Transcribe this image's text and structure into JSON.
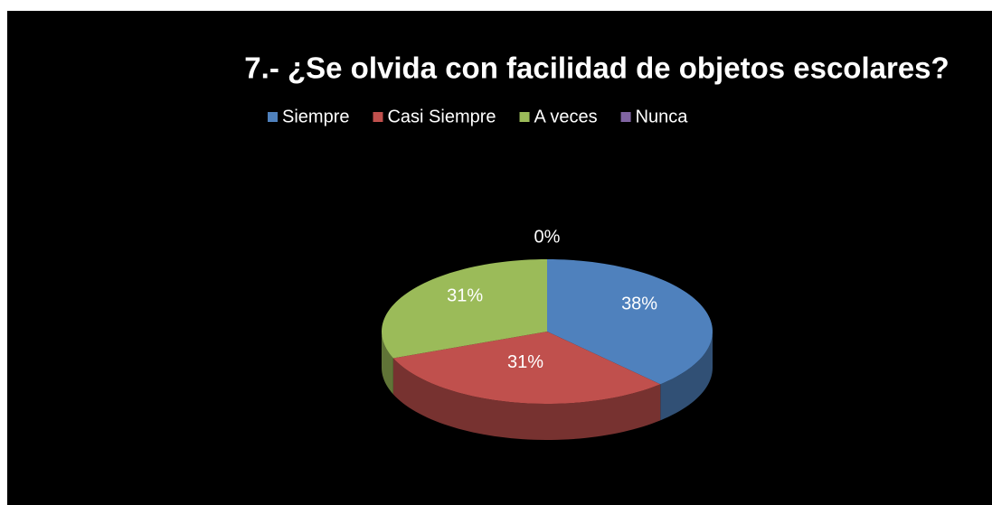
{
  "chart_data": {
    "type": "pie",
    "title": "7.- ¿Se olvida con facilidad de objetos escolares?",
    "categories": [
      "Siempre",
      "Casi Siempre",
      "A veces",
      "Nunca"
    ],
    "values": [
      38,
      31,
      31,
      0
    ],
    "value_labels": [
      "38%",
      "31%",
      "31%",
      "0%"
    ],
    "colors": [
      "#4f81bd",
      "#c0504d",
      "#9bbb59",
      "#8064a2"
    ],
    "legend": "top"
  }
}
